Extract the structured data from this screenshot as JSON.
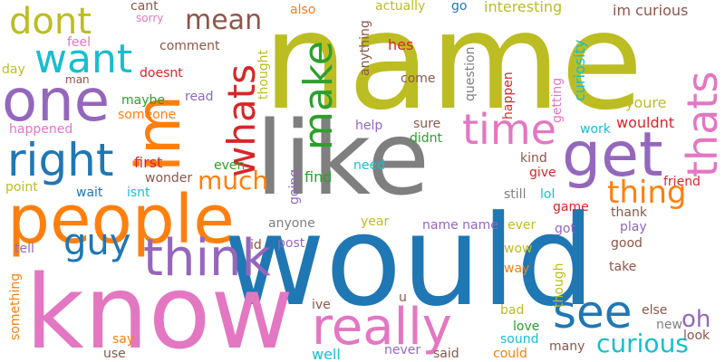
{
  "cloud": {
    "words": [
      {
        "text": "name",
        "color": "#bcbd22"
      },
      {
        "text": "would",
        "color": "#1f77b4"
      },
      {
        "text": "know",
        "color": "#e377c2"
      },
      {
        "text": "like",
        "color": "#7f7f7f"
      },
      {
        "text": "people",
        "color": "#ff7f0e"
      },
      {
        "text": "im",
        "color": "#ff7f0e"
      },
      {
        "text": "one",
        "color": "#9467bd"
      },
      {
        "text": "get",
        "color": "#9467bd"
      },
      {
        "text": "dont",
        "color": "#bcbd22"
      },
      {
        "text": "want",
        "color": "#17becf"
      },
      {
        "text": "right",
        "color": "#1f77b4"
      },
      {
        "text": "think",
        "color": "#9467bd"
      },
      {
        "text": "really",
        "color": "#e377c2"
      },
      {
        "text": "thats",
        "color": "#e377c2"
      },
      {
        "text": "make",
        "color": "#2ca02c"
      },
      {
        "text": "whats",
        "color": "#d62728"
      },
      {
        "text": "time",
        "color": "#e377c2"
      },
      {
        "text": "see",
        "color": "#1f77b4"
      },
      {
        "text": "guy",
        "color": "#1f77b4"
      },
      {
        "text": "mean",
        "color": "#8c564b"
      },
      {
        "text": "thing",
        "color": "#ff7f0e"
      },
      {
        "text": "much",
        "color": "#ff7f0e"
      },
      {
        "text": "curious",
        "color": "#17becf"
      },
      {
        "text": "oh",
        "color": "#9467bd"
      },
      {
        "text": "im curious",
        "color": "#8c564b"
      },
      {
        "text": "interesting",
        "color": "#bcbd22"
      },
      {
        "text": "curiosity",
        "color": "#17becf"
      },
      {
        "text": "youre",
        "color": "#bcbd22"
      },
      {
        "text": "cant",
        "color": "#8c564b"
      },
      {
        "text": "sorry",
        "color": "#e377c2"
      },
      {
        "text": "also",
        "color": "#ff7f0e"
      },
      {
        "text": "actually",
        "color": "#bcbd22"
      },
      {
        "text": "go",
        "color": "#1f77b4"
      },
      {
        "text": "anything",
        "color": "#8c564b"
      },
      {
        "text": "comment",
        "color": "#8c564b"
      },
      {
        "text": "doesnt",
        "color": "#d62728"
      },
      {
        "text": "feel",
        "color": "#e377c2"
      },
      {
        "text": "man",
        "color": "#8c564b"
      },
      {
        "text": "day",
        "color": "#bcbd22"
      },
      {
        "text": "maybe",
        "color": "#2ca02c"
      },
      {
        "text": "read",
        "color": "#9467bd"
      },
      {
        "text": "someone",
        "color": "#ff7f0e"
      },
      {
        "text": "happened",
        "color": "#e377c2"
      },
      {
        "text": "thought",
        "color": "#bcbd22"
      },
      {
        "text": "hes",
        "color": "#d62728"
      },
      {
        "text": "come",
        "color": "#8c564b"
      },
      {
        "text": "question",
        "color": "#7f7f7f"
      },
      {
        "text": "happen",
        "color": "#d62728"
      },
      {
        "text": "getting",
        "color": "#e377c2"
      },
      {
        "text": "sure",
        "color": "#8c564b"
      },
      {
        "text": "didnt",
        "color": "#2ca02c"
      },
      {
        "text": "help",
        "color": "#9467bd"
      },
      {
        "text": "work",
        "color": "#17becf"
      },
      {
        "text": "wouldnt",
        "color": "#d62728"
      },
      {
        "text": "kind",
        "color": "#8c564b"
      },
      {
        "text": "give",
        "color": "#d62728"
      },
      {
        "text": "friend",
        "color": "#d62728"
      },
      {
        "text": "first",
        "color": "#d62728"
      },
      {
        "text": "wonder",
        "color": "#8c564b"
      },
      {
        "text": "even",
        "color": "#2ca02c"
      },
      {
        "text": "need",
        "color": "#17becf"
      },
      {
        "text": "find",
        "color": "#2ca02c"
      },
      {
        "text": "point",
        "color": "#bcbd22"
      },
      {
        "text": "wait",
        "color": "#1f77b4"
      },
      {
        "text": "isnt",
        "color": "#17becf"
      },
      {
        "text": "going",
        "color": "#9467bd"
      },
      {
        "text": "still",
        "color": "#7f7f7f"
      },
      {
        "text": "lol",
        "color": "#17becf"
      },
      {
        "text": "game",
        "color": "#d62728"
      },
      {
        "text": "thank",
        "color": "#8c564b"
      },
      {
        "text": "play",
        "color": "#9467bd"
      },
      {
        "text": "anyone",
        "color": "#7f7f7f"
      },
      {
        "text": "year",
        "color": "#bcbd22"
      },
      {
        "text": "name name",
        "color": "#9467bd"
      },
      {
        "text": "ever",
        "color": "#bcbd22"
      },
      {
        "text": "got",
        "color": "#9467bd"
      },
      {
        "text": "good",
        "color": "#8c564b"
      },
      {
        "text": "tell",
        "color": "#9467bd"
      },
      {
        "text": "id",
        "color": "#8c564b"
      },
      {
        "text": "post",
        "color": "#9467bd"
      },
      {
        "text": "wow",
        "color": "#bcbd22"
      },
      {
        "text": "way",
        "color": "#ff7f0e"
      },
      {
        "text": "though",
        "color": "#bcbd22"
      },
      {
        "text": "take",
        "color": "#8c564b"
      },
      {
        "text": "something",
        "color": "#ff7f0e"
      },
      {
        "text": "ive",
        "color": "#8c564b"
      },
      {
        "text": "u",
        "color": "#8c564b"
      },
      {
        "text": "bad",
        "color": "#bcbd22"
      },
      {
        "text": "love",
        "color": "#2ca02c"
      },
      {
        "text": "else",
        "color": "#8c564b"
      },
      {
        "text": "new",
        "color": "#7f7f7f"
      },
      {
        "text": "look",
        "color": "#8c564b"
      },
      {
        "text": "say",
        "color": "#ff7f0e"
      },
      {
        "text": "use",
        "color": "#8c564b"
      },
      {
        "text": "well",
        "color": "#17becf"
      },
      {
        "text": "never",
        "color": "#9467bd"
      },
      {
        "text": "said",
        "color": "#8c564b"
      },
      {
        "text": "could",
        "color": "#ff7f0e"
      },
      {
        "text": "sound",
        "color": "#17becf"
      },
      {
        "text": "many",
        "color": "#8c564b"
      }
    ]
  }
}
